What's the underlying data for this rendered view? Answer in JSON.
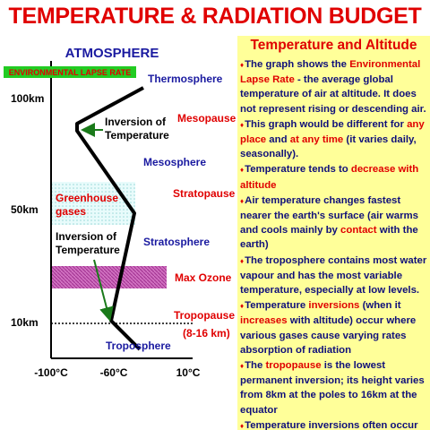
{
  "header": {
    "title": "TEMPERATURE & RADIATION BUDGET"
  },
  "diagram": {
    "title": "ATMOSPHERE",
    "legend": "ENVIRONMENTAL LAPSE RATE",
    "altitude_labels": [
      "100km",
      "50km",
      "10km"
    ],
    "temperature_labels": [
      "-100°C",
      "-60°C",
      "10°C"
    ],
    "layers": [
      "Thermosphere",
      "Mesopause",
      "Mesosphere",
      "Stratopause",
      "Stratosphere",
      "Max Ozone",
      "Tropopause",
      "(8-16 km)",
      "Troposphere"
    ],
    "upper_inversion": "Inversion of Temperature",
    "greenhouse": "Greenhouse gases",
    "lower_inversion": "Inversion of Temperature"
  },
  "panel": {
    "title": "Temperature and Altitude",
    "bullets": [
      [
        "The graph shows the ",
        {
          "text": "Environmental Lapse Rate",
          "color": "#e00000"
        },
        " - the average global temperature of air at altitude. It does not represent rising or descending air."
      ],
      [
        "This graph would be different for ",
        {
          "text": "any place",
          "color": "#e00000"
        },
        " and ",
        {
          "text": "at any time",
          "color": "#e00000"
        },
        " (it varies daily, seasonally)."
      ],
      [
        "Temperature tends to ",
        {
          "text": "decrease with altitude",
          "color": "#e00000"
        }
      ],
      [
        "Air temperature changes fastest nearer the earth's surface (air warms and cools mainly by ",
        {
          "text": "contact",
          "color": "#e00000"
        },
        " with the earth)"
      ],
      [
        "The troposphere contains most water vapour and has the most variable temperature, especially at low levels."
      ],
      [
        "Temperature ",
        {
          "text": "inversions",
          "color": "#e00000"
        },
        " (when it ",
        {
          "text": "increases",
          "color": "#e00000"
        },
        " with altitude) occur where various gases cause varying rates absorption of radiation"
      ],
      [
        "The ",
        {
          "text": "tropopause",
          "color": "#e00000"
        },
        " is the lowest permanent inversion; its height varies from 8km at the poles to 16km at the equator"
      ],
      [
        "Temperature inversions often occur at"
      ]
    ]
  }
}
